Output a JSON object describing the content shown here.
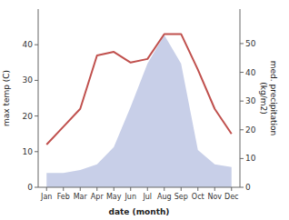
{
  "chart_data": {
    "type": "line",
    "categories": [
      "Jan",
      "Feb",
      "Mar",
      "Apr",
      "May",
      "Jun",
      "Jul",
      "Aug",
      "Sep",
      "Oct",
      "Nov",
      "Dec"
    ],
    "series": [
      {
        "type": "area",
        "axis": "y2",
        "color": "#c8cfe8",
        "values": [
          5,
          5,
          6,
          8,
          14,
          28,
          43,
          53,
          43,
          13,
          8,
          7
        ]
      },
      {
        "type": "line",
        "color": "#c0504d",
        "values": [
          12,
          17,
          22,
          37,
          38,
          35,
          36,
          43,
          43,
          33,
          22,
          15
        ]
      }
    ],
    "xlabel": "date (month)",
    "ylabel": "max temp (C)",
    "y2label": "med. precipitation\n(kg/m2)",
    "ylim": [
      0,
      50
    ],
    "yticks": [
      0,
      10,
      20,
      30,
      40
    ],
    "y2lim": [
      0,
      62
    ],
    "y2ticks": [
      0,
      10,
      20,
      30,
      40,
      50
    ],
    "grid": false
  }
}
